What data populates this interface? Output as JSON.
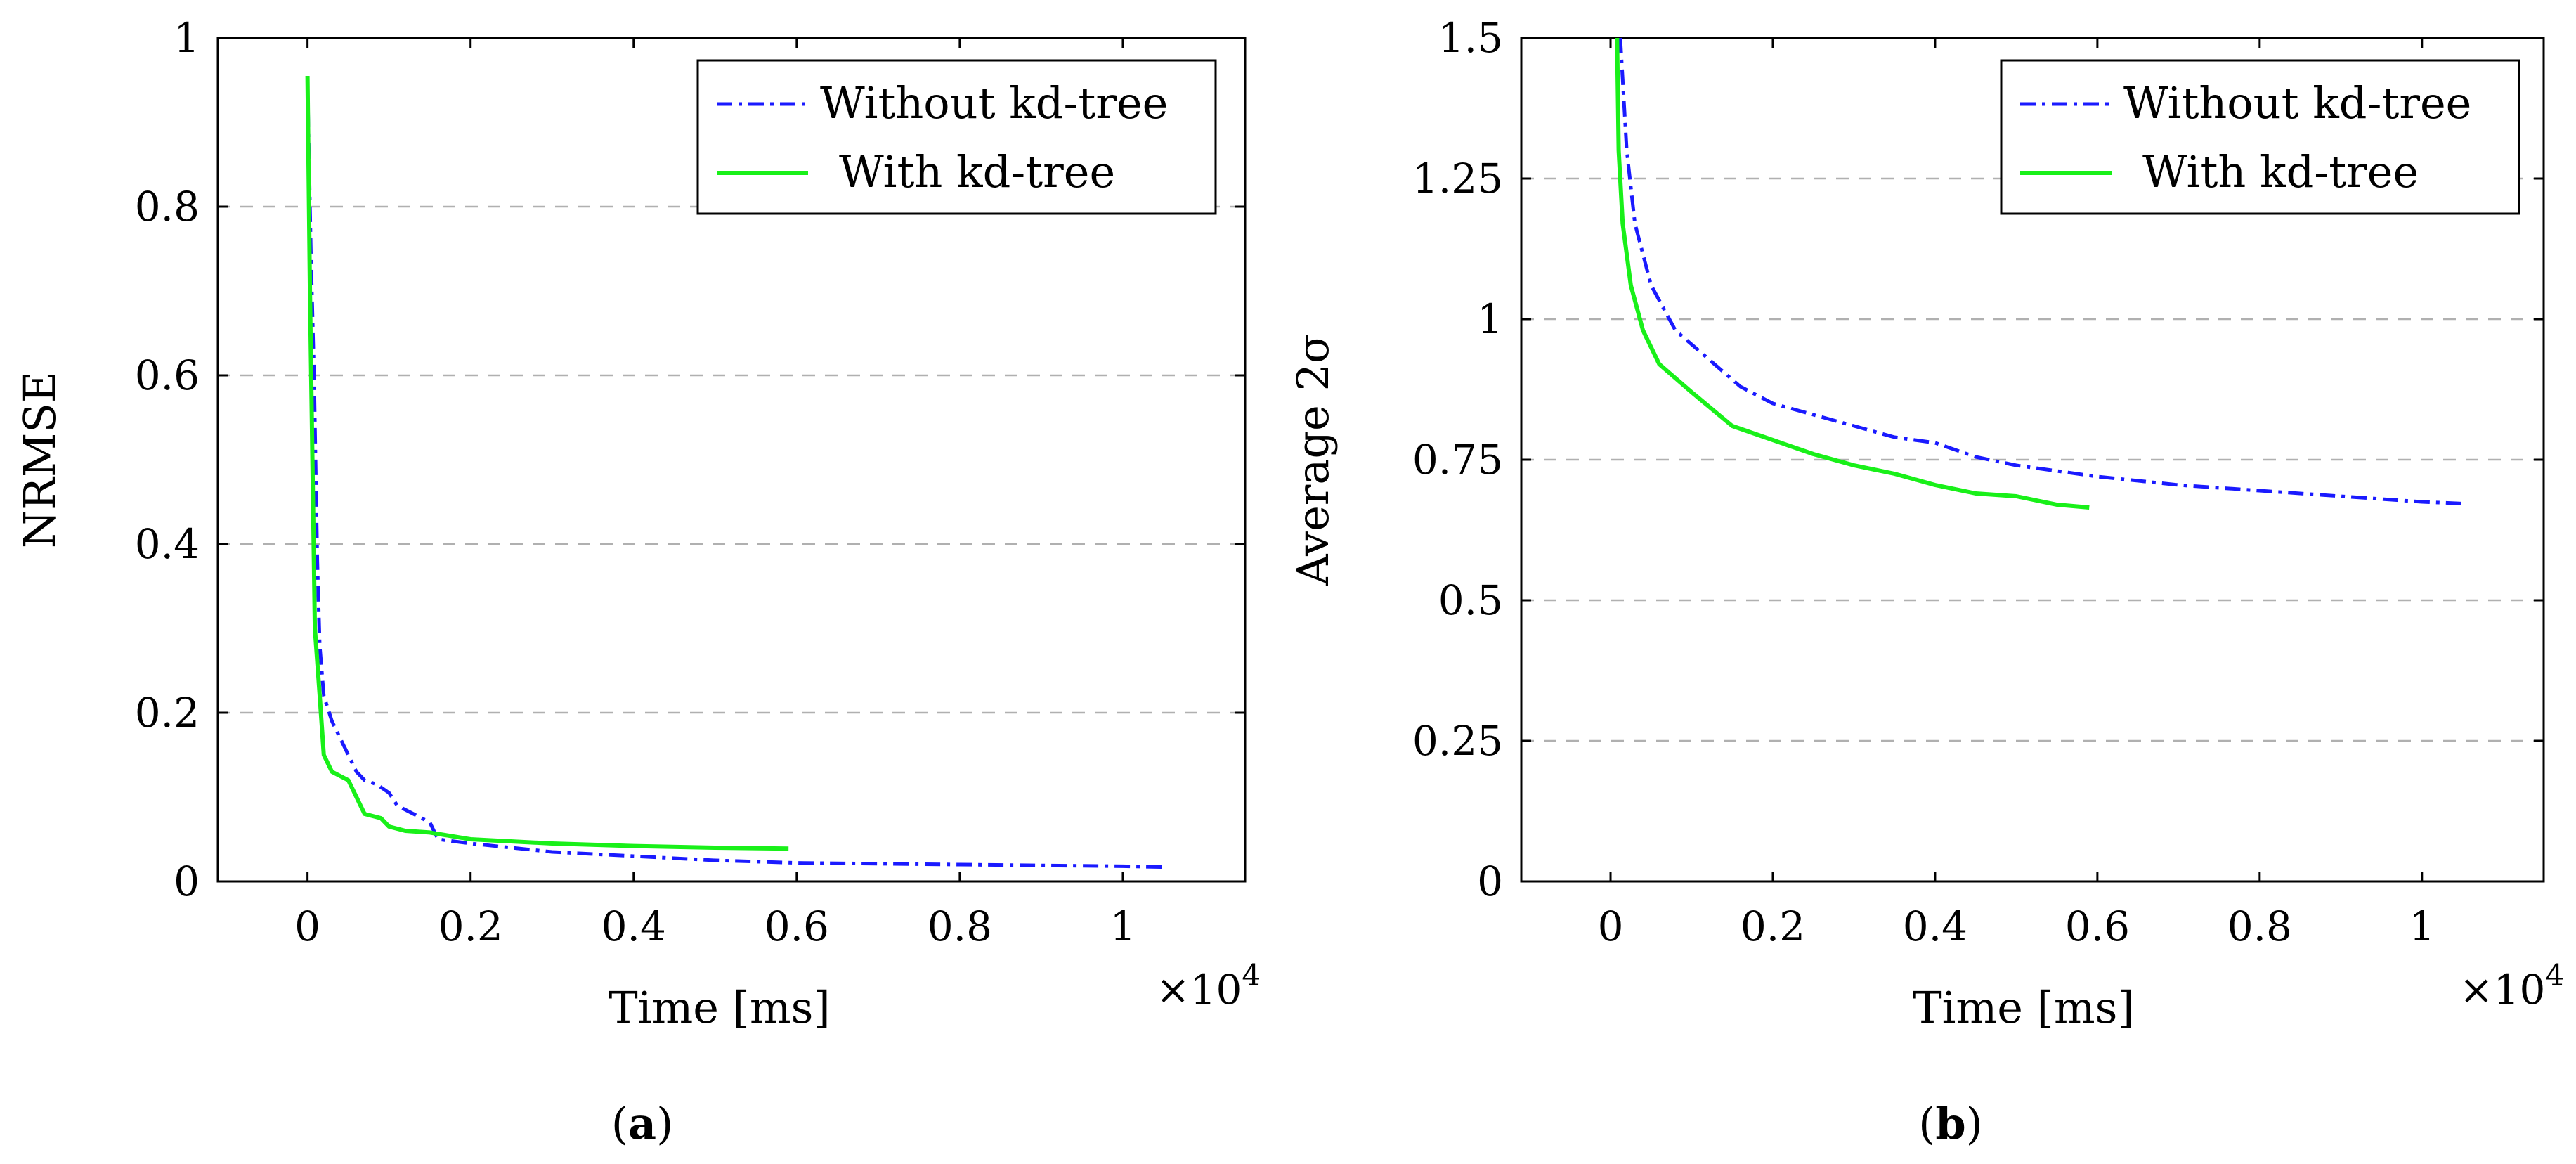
{
  "chart_data": [
    {
      "type": "line",
      "caption": "(a)",
      "caption_bold": "a",
      "xlabel": "Time [ms]",
      "ylabel": "NRMSE",
      "x_multiplier": "×10",
      "x_multiplier_exp": "4",
      "xlim": [
        -0.11,
        1.15
      ],
      "ylim": [
        0,
        1
      ],
      "xticks": [
        0,
        0.2,
        0.4,
        0.6,
        0.8,
        1
      ],
      "xtick_labels": [
        "0",
        "0.2",
        "0.4",
        "0.6",
        "0.8",
        "1"
      ],
      "yticks": [
        0,
        0.2,
        0.4,
        0.6,
        0.8,
        1
      ],
      "ytick_labels": [
        "0",
        "0.2",
        "0.4",
        "0.6",
        "0.8",
        "1"
      ],
      "grid": "horizontal dashed at y ticks",
      "legend_position": "top-right",
      "series": [
        {
          "name": "Without kd-tree",
          "color": "#1a1aff",
          "style": "dash-dot",
          "points": [
            [
              0.0,
              0.95
            ],
            [
              0.004,
              0.75
            ],
            [
              0.008,
              0.6
            ],
            [
              0.012,
              0.38
            ],
            [
              0.015,
              0.28
            ],
            [
              0.02,
              0.22
            ],
            [
              0.03,
              0.19
            ],
            [
              0.04,
              0.17
            ],
            [
              0.05,
              0.15
            ],
            [
              0.06,
              0.13
            ],
            [
              0.07,
              0.12
            ],
            [
              0.085,
              0.115
            ],
            [
              0.1,
              0.105
            ],
            [
              0.11,
              0.09
            ],
            [
              0.13,
              0.08
            ],
            [
              0.15,
              0.07
            ],
            [
              0.16,
              0.05
            ],
            [
              0.2,
              0.045
            ],
            [
              0.25,
              0.04
            ],
            [
              0.3,
              0.035
            ],
            [
              0.4,
              0.03
            ],
            [
              0.5,
              0.025
            ],
            [
              0.6,
              0.022
            ],
            [
              0.8,
              0.02
            ],
            [
              1.0,
              0.018
            ],
            [
              1.05,
              0.017
            ]
          ]
        },
        {
          "name": "With kd-tree",
          "color": "#19f019",
          "style": "solid",
          "points": [
            [
              0.0,
              0.955
            ],
            [
              0.003,
              0.7
            ],
            [
              0.006,
              0.5
            ],
            [
              0.009,
              0.3
            ],
            [
              0.015,
              0.22
            ],
            [
              0.02,
              0.15
            ],
            [
              0.03,
              0.13
            ],
            [
              0.05,
              0.12
            ],
            [
              0.06,
              0.1
            ],
            [
              0.07,
              0.08
            ],
            [
              0.09,
              0.075
            ],
            [
              0.1,
              0.065
            ],
            [
              0.12,
              0.06
            ],
            [
              0.15,
              0.058
            ],
            [
              0.2,
              0.05
            ],
            [
              0.3,
              0.045
            ],
            [
              0.4,
              0.042
            ],
            [
              0.5,
              0.04
            ],
            [
              0.59,
              0.039
            ]
          ]
        }
      ]
    },
    {
      "type": "line",
      "caption": "(b)",
      "caption_bold": "b",
      "xlabel": "Time [ms]",
      "ylabel": "Average 2σ",
      "x_multiplier": "×10",
      "x_multiplier_exp": "4",
      "xlim": [
        -0.11,
        1.15
      ],
      "ylim": [
        0,
        1.5
      ],
      "xticks": [
        0,
        0.2,
        0.4,
        0.6,
        0.8,
        1
      ],
      "xtick_labels": [
        "0",
        "0.2",
        "0.4",
        "0.6",
        "0.8",
        "1"
      ],
      "yticks": [
        0,
        0.25,
        0.5,
        0.75,
        1,
        1.25,
        1.5
      ],
      "ytick_labels": [
        "0",
        "0.25",
        "0.5",
        "0.75",
        "1",
        "1.25",
        "1.5"
      ],
      "grid": "horizontal dashed at y ticks",
      "legend_position": "top-right",
      "series": [
        {
          "name": "Without kd-tree",
          "color": "#1a1aff",
          "style": "dash-dot",
          "points": [
            [
              0.012,
              1.5
            ],
            [
              0.02,
              1.3
            ],
            [
              0.03,
              1.17
            ],
            [
              0.05,
              1.06
            ],
            [
              0.08,
              0.98
            ],
            [
              0.12,
              0.93
            ],
            [
              0.16,
              0.88
            ],
            [
              0.2,
              0.85
            ],
            [
              0.25,
              0.83
            ],
            [
              0.3,
              0.81
            ],
            [
              0.35,
              0.79
            ],
            [
              0.4,
              0.78
            ],
            [
              0.45,
              0.755
            ],
            [
              0.5,
              0.74
            ],
            [
              0.6,
              0.72
            ],
            [
              0.7,
              0.705
            ],
            [
              0.8,
              0.695
            ],
            [
              0.9,
              0.685
            ],
            [
              1.0,
              0.675
            ],
            [
              1.05,
              0.672
            ]
          ]
        },
        {
          "name": "With kd-tree",
          "color": "#19f019",
          "style": "solid",
          "points": [
            [
              0.008,
              1.5
            ],
            [
              0.01,
              1.3
            ],
            [
              0.015,
              1.17
            ],
            [
              0.025,
              1.06
            ],
            [
              0.04,
              0.98
            ],
            [
              0.06,
              0.92
            ],
            [
              0.1,
              0.87
            ],
            [
              0.15,
              0.81
            ],
            [
              0.2,
              0.785
            ],
            [
              0.25,
              0.76
            ],
            [
              0.3,
              0.74
            ],
            [
              0.35,
              0.725
            ],
            [
              0.4,
              0.705
            ],
            [
              0.45,
              0.69
            ],
            [
              0.5,
              0.685
            ],
            [
              0.55,
              0.67
            ],
            [
              0.59,
              0.665
            ]
          ]
        }
      ]
    }
  ]
}
